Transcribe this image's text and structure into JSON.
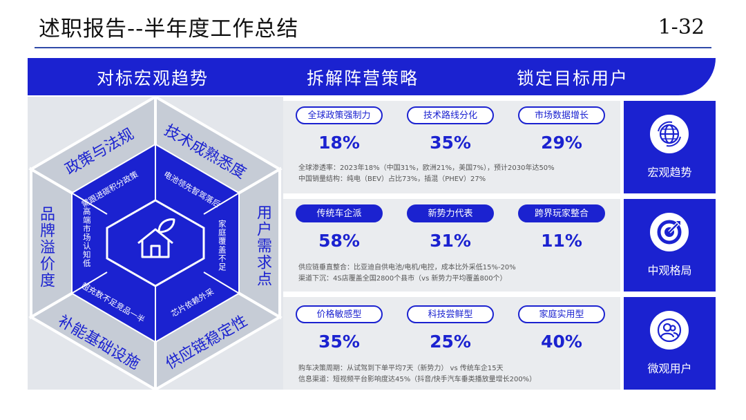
{
  "header": {
    "title": "述职报告--半年度工作总结",
    "page": "1-32"
  },
  "banner": {
    "tabs": [
      "对标宏观趋势",
      "拆解阵营策略",
      "锁定目标用户"
    ]
  },
  "hexagon": {
    "outer_labels": {
      "top_left": "政策与法规",
      "top_right": "技术成熟悉度",
      "right": "用户需求点",
      "bottom_right": "供应链稳定性",
      "bottom_left": "补能基础设施",
      "left": "品牌溢价度"
    },
    "inner_labels": {
      "top_left": "需跟进碳积分政策",
      "top_right": "电池领先智驾落后",
      "right": "家庭覆盖不足",
      "bottom_right": "芯片依赖外采",
      "bottom_left": "超充数不足竞品一半",
      "left": "高端市场认知低"
    },
    "center_icon": "home-leaf-icon"
  },
  "sections": [
    {
      "pill_style": "outline",
      "metrics": [
        {
          "label": "全球政策强制力",
          "value": "18%"
        },
        {
          "label": "技术路线分化",
          "value": "35%"
        },
        {
          "label": "市场数据增长",
          "value": "29%"
        }
      ],
      "notes": [
        "全球渗透率：2023年18%（中国31%，欧洲21%，美国7%），预计2030年达50%",
        "中国销量结构：纯电（BEV）占比73%，插混（PHEV）27%"
      ],
      "side": {
        "label": "宏观趋势",
        "icon": "globe-icon"
      }
    },
    {
      "pill_style": "filled",
      "metrics": [
        {
          "label": "传统车企派",
          "value": "58%"
        },
        {
          "label": "新势力代表",
          "value": "31%"
        },
        {
          "label": "跨界玩家整合",
          "value": "11%"
        }
      ],
      "notes": [
        "供应链垂直整合：比亚迪自供电池/电机/电控，成本比外采低15%-20%",
        "渠道下沉：4S店覆盖全国2800个县市（vs 新势力平均覆盖800个）"
      ],
      "side": {
        "label": "中观格局",
        "icon": "target-icon"
      }
    },
    {
      "pill_style": "outline",
      "metrics": [
        {
          "label": "价格敏感型",
          "value": "35%"
        },
        {
          "label": "科技尝鲜型",
          "value": "25%"
        },
        {
          "label": "家庭实用型",
          "value": "40%"
        }
      ],
      "notes": [
        "购车决策周期：从试驾到下单平均7天（新势力） vs 传统车企15天",
        "信息渠道：短视频平台影响度达45%（抖音/快手汽车垂类播放量增长200%）"
      ],
      "side": {
        "label": "微观用户",
        "icon": "users-icon"
      }
    }
  ],
  "colors": {
    "accent": "#1b22d0",
    "panel": "#eaecef",
    "hex_outer": "#c9cfd8"
  }
}
